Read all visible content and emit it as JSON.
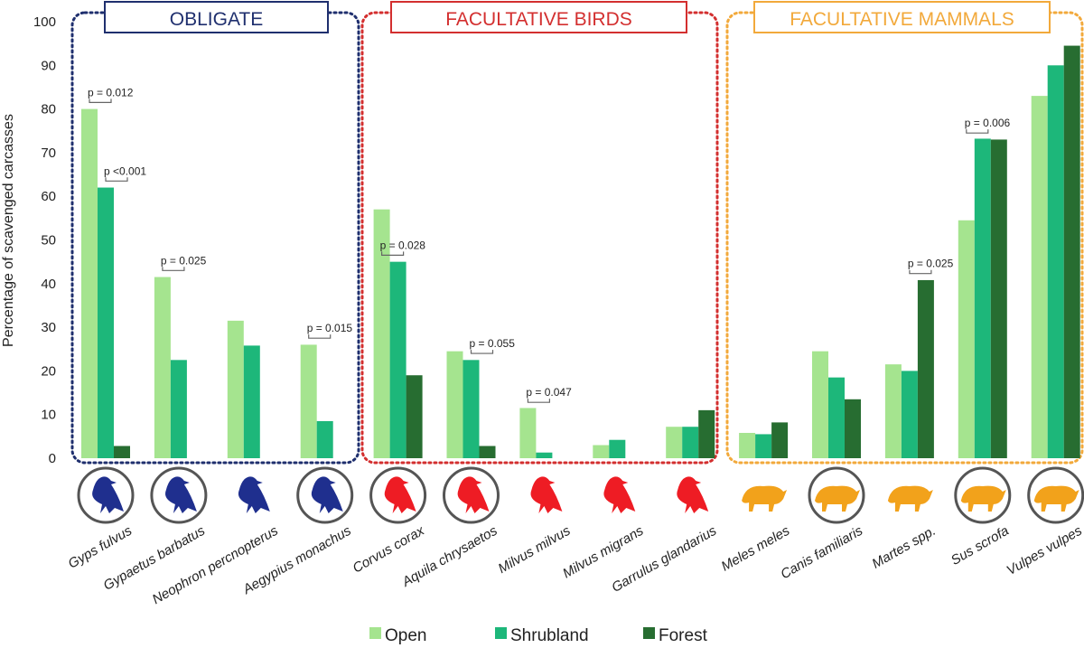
{
  "chart_data": {
    "type": "bar",
    "ylabel": "Percentage of scavenged carcasses",
    "ylim": [
      0,
      100
    ],
    "yticks": [
      0,
      10,
      20,
      30,
      40,
      50,
      60,
      70,
      80,
      90,
      100
    ],
    "categories": [
      "Gyps fulvus",
      "Gypaetus barbatus",
      "Neophron percnopterus",
      "Aegypius monachus",
      "Corvus corax",
      "Aquila chrysaetos",
      "Milvus milvus",
      "Milvus migrans",
      "Garrulus glandarius",
      "Meles meles",
      "Canis familiaris",
      "Martes spp.",
      "Sus scrofa",
      "Vulpes vulpes"
    ],
    "series": [
      {
        "name": "Open",
        "color": "#a5e48f",
        "values": [
          80,
          41.5,
          31.5,
          26,
          57,
          24.5,
          11.5,
          3,
          7.2,
          5.8,
          24.5,
          21.5,
          54.5,
          83
        ]
      },
      {
        "name": "Shrubland",
        "color": "#1db77a",
        "values": [
          62,
          22.5,
          25.8,
          8.5,
          45,
          22.5,
          1.3,
          4.2,
          7.2,
          5.5,
          18.5,
          20,
          73.2,
          90
        ]
      },
      {
        "name": "Forest",
        "color": "#276d31",
        "values": [
          2.8,
          null,
          null,
          null,
          19,
          2.8,
          null,
          null,
          11,
          8.2,
          13.5,
          40.8,
          73,
          94.5
        ]
      }
    ],
    "groups": [
      {
        "label": "OBLIGATE",
        "color": "#1f2f6e",
        "start": 0,
        "end": 3
      },
      {
        "label": "FACULTATIVE BIRDS",
        "color": "#d32f2f",
        "start": 4,
        "end": 8
      },
      {
        "label": "FACULTATIVE MAMMALS",
        "color": "#f2a93b",
        "start": 9,
        "end": 13
      }
    ],
    "annotations": [
      {
        "text": "p = 0.012",
        "category": 0,
        "from": 0,
        "to": 1,
        "y": 81.5
      },
      {
        "text": "p <0.001",
        "category": 0,
        "from": 1,
        "to": 2,
        "y": 63.5
      },
      {
        "text": "p = 0.025",
        "category": 1,
        "from": 0,
        "to": 1,
        "y": 43
      },
      {
        "text": "p = 0.015",
        "category": 3,
        "from": 0,
        "to": 1,
        "y": 27.5
      },
      {
        "text": "p = 0.028",
        "category": 4,
        "from": 0,
        "to": 1,
        "y": 46.5
      },
      {
        "text": "p = 0.055",
        "category": 5,
        "from": 1,
        "to": 2,
        "y": 24
      },
      {
        "text": "p = 0.047",
        "category": 6,
        "from": 0,
        "to": 1,
        "y": 12.8
      },
      {
        "text": "p = 0.006",
        "category": 12,
        "from": 0,
        "to": 1,
        "y": 74.5
      },
      {
        "text": "p = 0.025",
        "category": 11,
        "from": 1,
        "to": 2,
        "y": 42.3
      }
    ],
    "icons": [
      {
        "name": "griffon-vulture-icon",
        "group": 0,
        "circled": true
      },
      {
        "name": "bearded-vulture-icon",
        "group": 0,
        "circled": true
      },
      {
        "name": "egyptian-vulture-icon",
        "group": 0,
        "circled": false
      },
      {
        "name": "cinereous-vulture-icon",
        "group": 0,
        "circled": true
      },
      {
        "name": "raven-icon",
        "group": 1,
        "circled": true
      },
      {
        "name": "golden-eagle-icon",
        "group": 1,
        "circled": true
      },
      {
        "name": "red-kite-icon",
        "group": 1,
        "circled": false
      },
      {
        "name": "black-kite-icon",
        "group": 1,
        "circled": false
      },
      {
        "name": "jay-icon",
        "group": 1,
        "circled": false
      },
      {
        "name": "badger-icon",
        "group": 2,
        "circled": false
      },
      {
        "name": "dog-icon",
        "group": 2,
        "circled": true
      },
      {
        "name": "marten-icon",
        "group": 2,
        "circled": false
      },
      {
        "name": "wild-boar-icon",
        "group": 2,
        "circled": true
      },
      {
        "name": "fox-icon",
        "group": 2,
        "circled": true
      }
    ],
    "legend": {
      "position": "bottom"
    }
  }
}
